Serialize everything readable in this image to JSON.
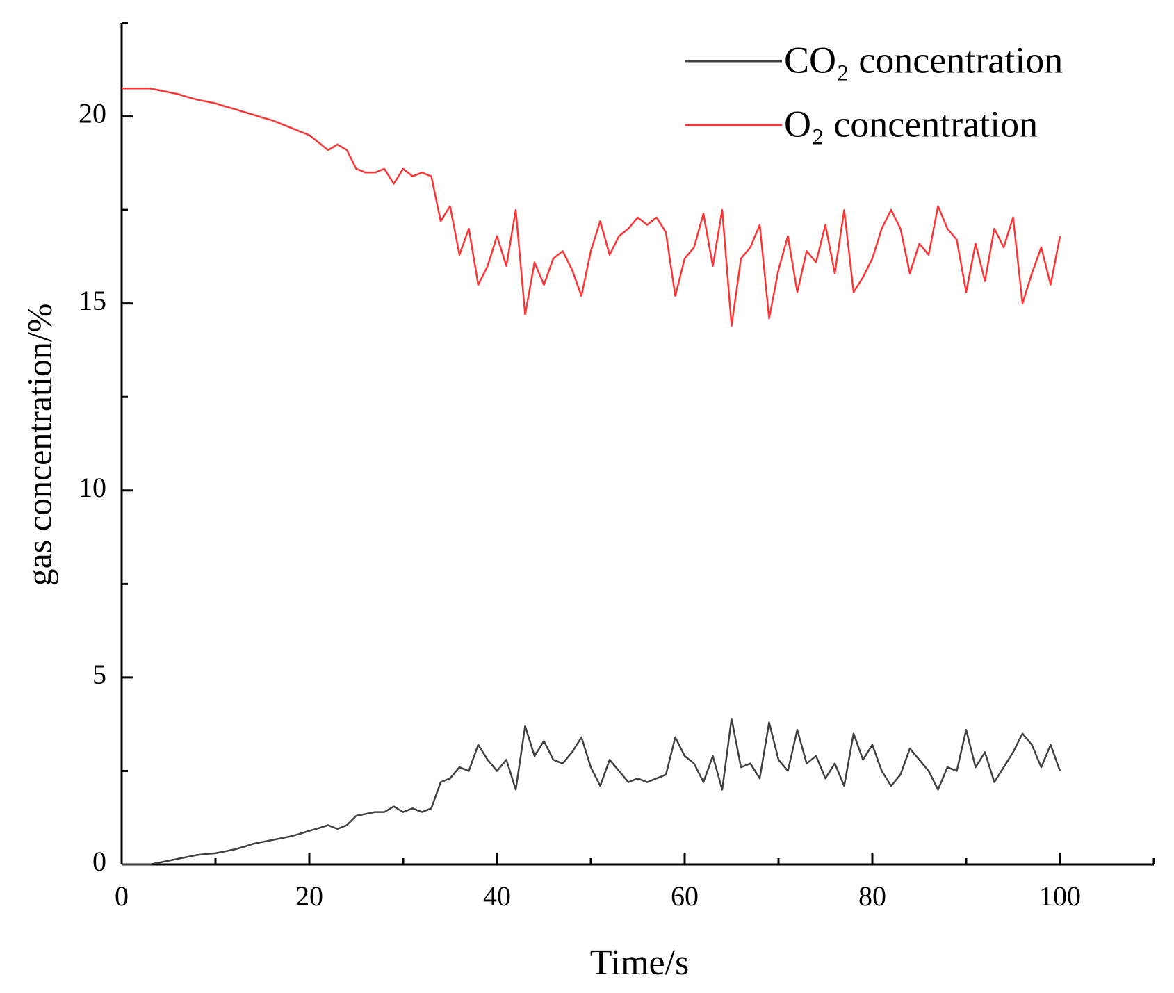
{
  "chart_data": {
    "type": "line",
    "xlabel": "Time/s",
    "ylabel": "gas concentration/%",
    "x": [
      0,
      1,
      2,
      3,
      4,
      5,
      6,
      7,
      8,
      9,
      10,
      11,
      12,
      13,
      14,
      15,
      16,
      17,
      18,
      19,
      20,
      21,
      22,
      23,
      24,
      25,
      26,
      27,
      28,
      29,
      30,
      31,
      32,
      33,
      34,
      35,
      36,
      37,
      38,
      39,
      40,
      41,
      42,
      43,
      44,
      45,
      46,
      47,
      48,
      49,
      50,
      51,
      52,
      53,
      54,
      55,
      56,
      57,
      58,
      59,
      60,
      61,
      62,
      63,
      64,
      65,
      66,
      67,
      68,
      69,
      70,
      71,
      72,
      73,
      74,
      75,
      76,
      77,
      78,
      79,
      80,
      81,
      82,
      83,
      84,
      85,
      86,
      87,
      88,
      89,
      90,
      91,
      92,
      93,
      94,
      95,
      96,
      97,
      98,
      99,
      100
    ],
    "series": [
      {
        "name": "CO₂ concentration",
        "color": "#404040",
        "values": [
          0,
          0,
          0,
          0,
          0.05,
          0.1,
          0.15,
          0.2,
          0.25,
          0.28,
          0.3,
          0.35,
          0.4,
          0.47,
          0.55,
          0.6,
          0.65,
          0.7,
          0.75,
          0.82,
          0.9,
          0.97,
          1.05,
          0.95,
          1.05,
          1.3,
          1.35,
          1.4,
          1.4,
          1.55,
          1.4,
          1.5,
          1.4,
          1.5,
          2.2,
          2.3,
          2.6,
          2.5,
          3.2,
          2.8,
          2.5,
          2.8,
          2.0,
          3.7,
          2.9,
          3.3,
          2.8,
          2.7,
          3.0,
          3.4,
          2.6,
          2.1,
          2.8,
          2.5,
          2.2,
          2.3,
          2.2,
          2.3,
          2.4,
          3.4,
          2.9,
          2.7,
          2.2,
          2.9,
          2.0,
          3.9,
          2.6,
          2.7,
          2.3,
          3.8,
          2.8,
          2.5,
          3.6,
          2.7,
          2.9,
          2.3,
          2.7,
          2.1,
          3.5,
          2.8,
          3.2,
          2.5,
          2.1,
          2.4,
          3.1,
          2.8,
          2.5,
          2.0,
          2.6,
          2.5,
          3.6,
          2.6,
          3.0,
          2.2,
          2.6,
          3.0,
          3.5,
          3.2,
          2.6,
          3.2,
          2.5
        ]
      },
      {
        "name": "O₂ concentration",
        "color": "#ff3333",
        "values": [
          20.75,
          20.75,
          20.75,
          20.75,
          20.7,
          20.65,
          20.6,
          20.52,
          20.45,
          20.4,
          20.35,
          20.27,
          20.2,
          20.12,
          20.05,
          19.97,
          19.9,
          19.8,
          19.7,
          19.6,
          19.5,
          19.3,
          19.1,
          19.25,
          19.1,
          18.6,
          18.5,
          18.5,
          18.6,
          18.2,
          18.6,
          18.4,
          18.5,
          18.4,
          17.2,
          17.6,
          16.3,
          17.0,
          15.5,
          16.0,
          16.8,
          16.0,
          17.5,
          14.7,
          16.1,
          15.5,
          16.2,
          16.4,
          15.9,
          15.2,
          16.4,
          17.2,
          16.3,
          16.8,
          17.0,
          17.3,
          17.1,
          17.3,
          16.9,
          15.2,
          16.2,
          16.5,
          17.4,
          16.0,
          17.5,
          14.4,
          16.2,
          16.5,
          17.1,
          14.6,
          15.9,
          16.8,
          15.3,
          16.4,
          16.1,
          17.1,
          15.8,
          17.5,
          15.3,
          15.7,
          16.2,
          17.0,
          17.5,
          17.0,
          15.8,
          16.6,
          16.3,
          17.6,
          17.0,
          16.7,
          15.3,
          16.6,
          15.6,
          17.0,
          16.5,
          17.3,
          15.0,
          15.8,
          16.5,
          15.5,
          16.8
        ]
      }
    ],
    "xlim": [
      0,
      110
    ],
    "xticks": [
      0,
      20,
      40,
      60,
      80,
      100
    ],
    "xticks_minor": [
      10,
      30,
      50,
      70,
      90,
      110
    ],
    "ylim": [
      0,
      22.5
    ],
    "yticks": [
      0,
      5,
      10,
      15,
      20
    ],
    "yticks_minor": [
      2.5,
      7.5,
      12.5,
      17.5,
      22.5
    ],
    "legend": "upper right",
    "grid": false
  }
}
